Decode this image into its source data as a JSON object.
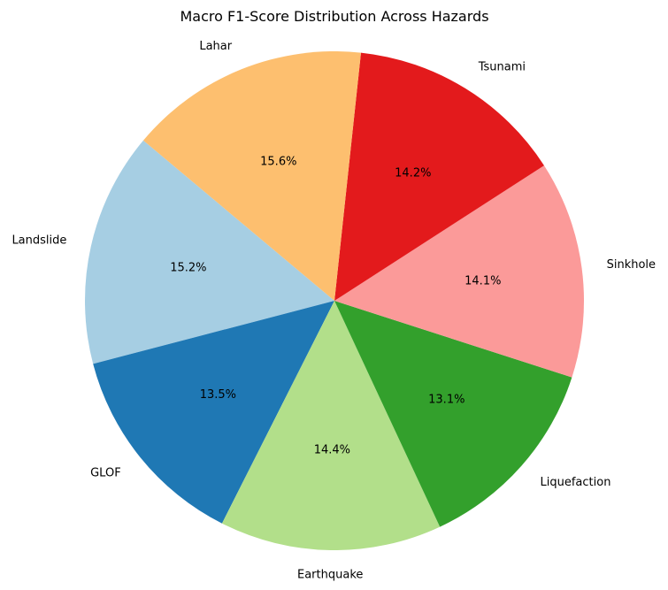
{
  "chart_data": {
    "type": "pie",
    "title": "Macro F1-Score Distribution Across Hazards",
    "categories": [
      "Landslide",
      "GLOF",
      "Earthquake",
      "Liquefaction",
      "Sinkhole",
      "Tsunami",
      "Lahar"
    ],
    "values": [
      15.2,
      13.5,
      14.4,
      13.1,
      14.1,
      14.2,
      15.6
    ],
    "value_labels": [
      "15.2%",
      "13.5%",
      "14.4%",
      "13.1%",
      "14.1%",
      "14.2%",
      "15.6%"
    ],
    "colors": [
      "#a6cee3",
      "#1f78b4",
      "#b2df8a",
      "#33a02c",
      "#fb9a99",
      "#e31a1c",
      "#fdbf6f"
    ],
    "start_angle_deg": 140,
    "direction": "counterclockwise",
    "legend": "none",
    "grid": false
  }
}
